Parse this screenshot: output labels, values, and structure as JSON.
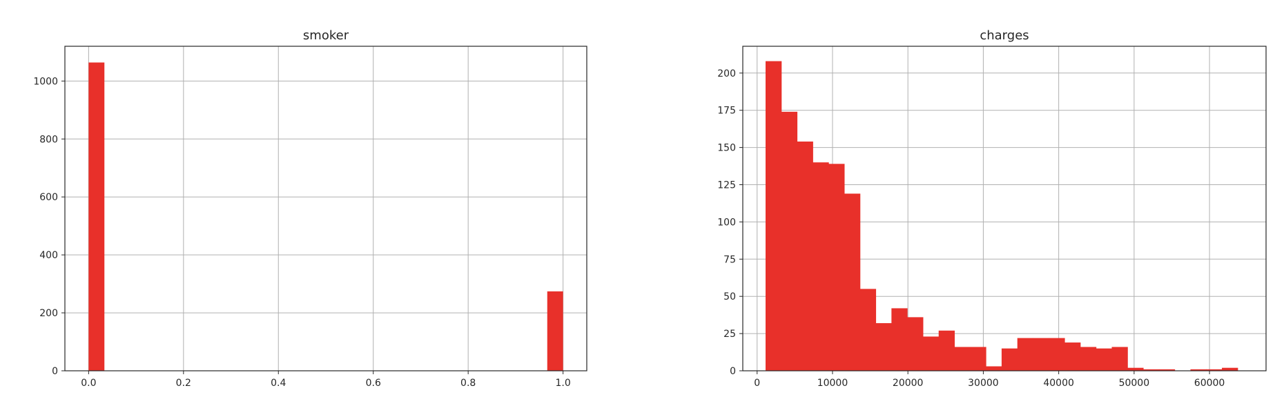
{
  "chart_data": [
    {
      "type": "bar",
      "title": "smoker",
      "xlabel": "",
      "ylabel": "",
      "bar_color": "#e8302a",
      "grid": true,
      "xlim": [
        -0.05,
        1.05
      ],
      "ylim": [
        0,
        1120
      ],
      "xticks": [
        0.0,
        0.2,
        0.4,
        0.6,
        0.8,
        1.0
      ],
      "xtick_labels": [
        "0.0",
        "0.2",
        "0.4",
        "0.6",
        "0.8",
        "1.0"
      ],
      "yticks": [
        0,
        200,
        400,
        600,
        800,
        1000
      ],
      "ytick_labels": [
        "0",
        "200",
        "400",
        "600",
        "800",
        "1000"
      ],
      "bins": [
        {
          "x0": 0.0,
          "x1": 0.0333,
          "value": 1064
        },
        {
          "x0": 0.9667,
          "x1": 1.0,
          "value": 274
        }
      ]
    },
    {
      "type": "bar",
      "title": "charges",
      "xlabel": "",
      "ylabel": "",
      "bar_color": "#e8302a",
      "grid": true,
      "xlim": [
        -1900,
        67500
      ],
      "ylim": [
        0,
        218
      ],
      "xticks": [
        0,
        10000,
        20000,
        30000,
        40000,
        50000,
        60000
      ],
      "xtick_labels": [
        "0",
        "10000",
        "20000",
        "30000",
        "40000",
        "50000",
        "60000"
      ],
      "yticks": [
        0,
        25,
        50,
        75,
        100,
        125,
        150,
        175,
        200
      ],
      "ytick_labels": [
        "0",
        "25",
        "50",
        "75",
        "100",
        "125",
        "150",
        "175",
        "200"
      ],
      "bin_start": 1122,
      "bin_width": 2087,
      "values": [
        208,
        174,
        154,
        140,
        139,
        119,
        55,
        32,
        42,
        36,
        23,
        27,
        16,
        16,
        3,
        15,
        22,
        22,
        22,
        19,
        16,
        15,
        16,
        2,
        1,
        1,
        0,
        1,
        1,
        2
      ]
    }
  ]
}
